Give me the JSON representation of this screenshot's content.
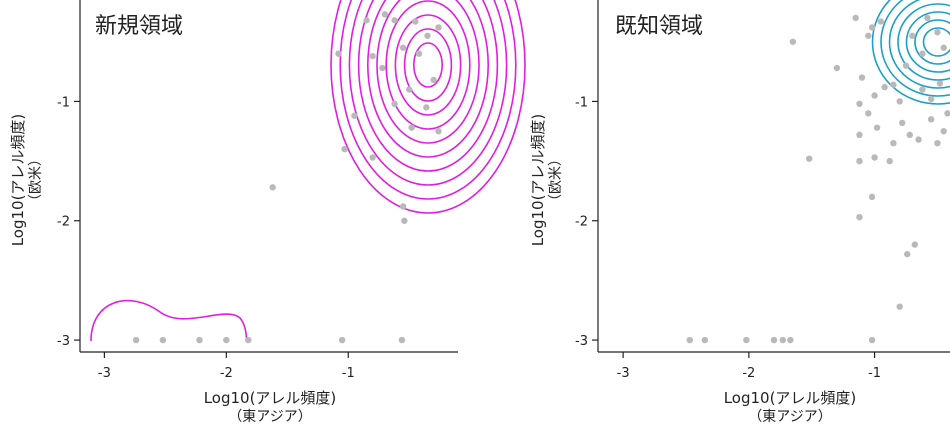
{
  "chart_data": [
    {
      "type": "scatter",
      "title": "新規領域",
      "xlabel": "Log10(アレル頻度)",
      "xlabel_sub": "（東アジア）",
      "ylabel": "Log10(アレル頻度)",
      "ylabel_sub": "（欧米）",
      "xlim": [
        -3.2,
        -0.1
      ],
      "ylim": [
        -3.1,
        -0.15
      ],
      "xticks": [
        -3,
        -2,
        -1
      ],
      "yticks": [
        -1,
        -2,
        -3
      ],
      "point_color": "#b9b9b9",
      "contour_color": "#e01ee0",
      "points": [
        {
          "x": -2.74,
          "y": -3.0
        },
        {
          "x": -2.52,
          "y": -3.0
        },
        {
          "x": -2.22,
          "y": -3.0
        },
        {
          "x": -2.0,
          "y": -3.0
        },
        {
          "x": -1.82,
          "y": -3.0
        },
        {
          "x": -1.05,
          "y": -3.0
        },
        {
          "x": -0.56,
          "y": -3.0
        },
        {
          "x": -1.62,
          "y": -1.72
        },
        {
          "x": -0.54,
          "y": -2.0
        },
        {
          "x": -0.55,
          "y": -1.88
        },
        {
          "x": -1.03,
          "y": -1.4
        },
        {
          "x": -0.8,
          "y": -1.47
        },
        {
          "x": -0.95,
          "y": -1.12
        },
        {
          "x": -1.08,
          "y": -0.6
        },
        {
          "x": -0.85,
          "y": -0.32
        },
        {
          "x": -0.7,
          "y": -0.27
        },
        {
          "x": -0.62,
          "y": -0.32
        },
        {
          "x": -0.45,
          "y": -0.33
        },
        {
          "x": -0.35,
          "y": -0.45
        },
        {
          "x": -0.26,
          "y": -0.38
        },
        {
          "x": -0.55,
          "y": -0.55
        },
        {
          "x": -0.42,
          "y": -0.6
        },
        {
          "x": -0.72,
          "y": -0.72
        },
        {
          "x": -0.3,
          "y": -0.82
        },
        {
          "x": -0.5,
          "y": -0.9
        },
        {
          "x": -0.62,
          "y": -1.02
        },
        {
          "x": -0.36,
          "y": -1.05
        },
        {
          "x": -0.48,
          "y": -1.22
        },
        {
          "x": -0.26,
          "y": -1.25
        },
        {
          "x": -0.8,
          "y": -0.62
        }
      ]
    },
    {
      "type": "scatter",
      "title": "既知領域",
      "xlabel": "Log10(アレル頻度)",
      "xlabel_sub": "（東アジア）",
      "ylabel": "Log10(アレル頻度)",
      "ylabel_sub": "（欧米）",
      "xlim": [
        -3.2,
        -0.4
      ],
      "ylim": [
        -3.1,
        -0.15
      ],
      "xticks": [
        -3,
        -2,
        -1
      ],
      "yticks": [
        -1,
        -2,
        -3
      ],
      "point_color": "#b9b9b9",
      "contour_color": "#1aa0c8",
      "points": [
        {
          "x": -2.47,
          "y": -3.0
        },
        {
          "x": -2.35,
          "y": -3.0
        },
        {
          "x": -2.02,
          "y": -3.0
        },
        {
          "x": -1.8,
          "y": -3.0
        },
        {
          "x": -1.73,
          "y": -3.0
        },
        {
          "x": -1.67,
          "y": -3.0
        },
        {
          "x": -1.02,
          "y": -3.0
        },
        {
          "x": -0.8,
          "y": -2.72
        },
        {
          "x": -0.74,
          "y": -2.28
        },
        {
          "x": -0.68,
          "y": -2.2
        },
        {
          "x": -1.12,
          "y": -1.97
        },
        {
          "x": -1.02,
          "y": -1.8
        },
        {
          "x": -1.52,
          "y": -1.48
        },
        {
          "x": -1.3,
          "y": -0.72
        },
        {
          "x": -1.65,
          "y": -0.5
        },
        {
          "x": -1.15,
          "y": -0.3
        },
        {
          "x": -1.02,
          "y": -0.38
        },
        {
          "x": -0.95,
          "y": -0.33
        },
        {
          "x": -1.05,
          "y": -0.45
        },
        {
          "x": -1.1,
          "y": -0.8
        },
        {
          "x": -1.0,
          "y": -0.95
        },
        {
          "x": -0.92,
          "y": -0.88
        },
        {
          "x": -0.85,
          "y": -0.86
        },
        {
          "x": -0.8,
          "y": -1.0
        },
        {
          "x": -1.12,
          "y": -1.02
        },
        {
          "x": -1.05,
          "y": -1.1
        },
        {
          "x": -0.98,
          "y": -1.22
        },
        {
          "x": -1.12,
          "y": -1.28
        },
        {
          "x": -0.85,
          "y": -1.35
        },
        {
          "x": -0.72,
          "y": -1.28
        },
        {
          "x": -1.0,
          "y": -1.47
        },
        {
          "x": -0.88,
          "y": -1.5
        },
        {
          "x": -1.12,
          "y": -1.5
        },
        {
          "x": -0.78,
          "y": -1.18
        },
        {
          "x": -0.55,
          "y": -1.15
        },
        {
          "x": -0.65,
          "y": -1.32
        },
        {
          "x": -0.5,
          "y": -1.35
        },
        {
          "x": -0.45,
          "y": -1.25
        },
        {
          "x": -0.62,
          "y": -0.9
        },
        {
          "x": -0.55,
          "y": -0.98
        },
        {
          "x": -0.48,
          "y": -0.85
        },
        {
          "x": -0.42,
          "y": -1.1
        },
        {
          "x": -0.7,
          "y": -0.45
        },
        {
          "x": -0.62,
          "y": -0.6
        },
        {
          "x": -0.58,
          "y": -0.3
        },
        {
          "x": -0.5,
          "y": -0.42
        },
        {
          "x": -0.45,
          "y": -0.55
        },
        {
          "x": -0.75,
          "y": -0.7
        }
      ]
    }
  ]
}
